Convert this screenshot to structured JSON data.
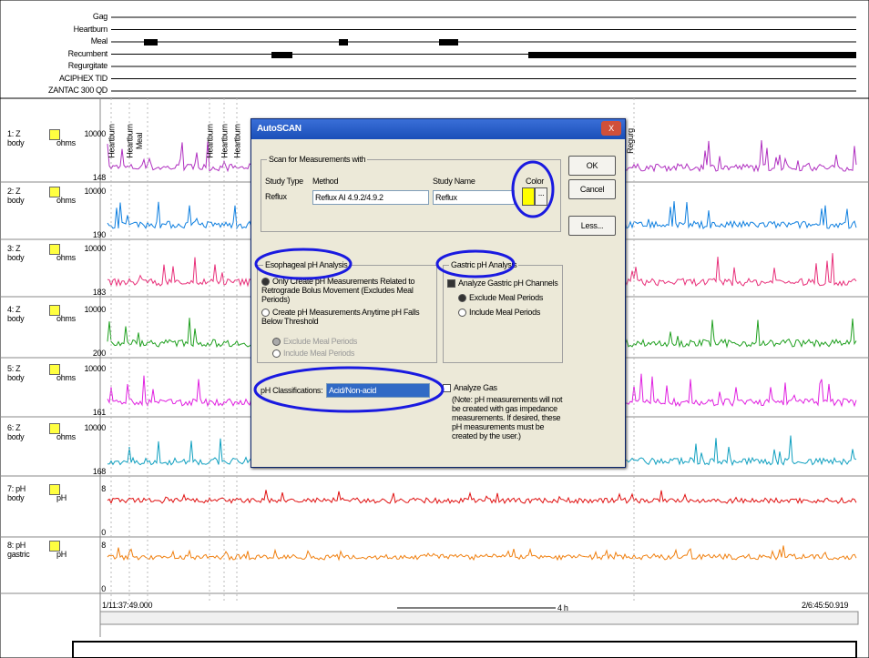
{
  "event_tracks": [
    "Gag",
    "Heartburn",
    "Meal",
    "Recumbent",
    "Regurgitate",
    "ACIPHEX TID",
    "ZANTAC 300 QD"
  ],
  "channels": [
    {
      "name": "1: Z",
      "site": "body",
      "unit": "ohms",
      "max": "10000",
      "min": "148"
    },
    {
      "name": "2: Z",
      "site": "body",
      "unit": "ohms",
      "max": "10000",
      "min": "190"
    },
    {
      "name": "3: Z",
      "site": "body",
      "unit": "ohms",
      "max": "10000",
      "min": "183"
    },
    {
      "name": "4: Z",
      "site": "body",
      "unit": "ohms",
      "max": "10000",
      "min": "200"
    },
    {
      "name": "5: Z",
      "site": "body",
      "unit": "ohms",
      "max": "10000",
      "min": "161"
    },
    {
      "name": "6: Z",
      "site": "body",
      "unit": "ohms",
      "max": "10000",
      "min": "168"
    },
    {
      "name": "7: pH",
      "site": "body",
      "unit": "pH",
      "max": "8",
      "min": "0"
    },
    {
      "name": "8: pH",
      "site": "gastric",
      "unit": "pH",
      "max": "8",
      "min": "0"
    }
  ],
  "markers": [
    "Heartburn",
    "Heartburn",
    "Meal",
    "Heartburn",
    "Heartburn",
    "Heartburn",
    "Regurg"
  ],
  "timeline": {
    "start": "1/11:37:49.000",
    "span": "4 h",
    "end": "2/6:45:50.919"
  },
  "dialog": {
    "title": "AutoSCAN",
    "close": "X",
    "scan": {
      "legend": "Scan for Measurements with",
      "study_type_label": "Study Type",
      "study_type": "Reflux",
      "method_label": "Method",
      "method": "Reflux AI 4.9.2/4.9.2",
      "study_name_label": "Study Name",
      "study_name": "Reflux",
      "color_label": "Color",
      "color_button": "..."
    },
    "buttons": [
      "OK",
      "Cancel",
      "Less..."
    ],
    "esophageal": {
      "legend": "Esophageal pH Analysis",
      "option_1": "Only Create pH Measurements Related to Retrograde Bolus Movement (Excludes Meal Periods)",
      "option_2": "Create pH Measurements Anytime pH Falls Below Threshold",
      "sub_1": "Exclude Meal Periods",
      "sub_2": "Include Meal Periods"
    },
    "gastric": {
      "legend": "Gastric pH Analysis",
      "check": "Analyze Gastric pH Channels",
      "sub_1": "Exclude Meal Periods",
      "sub_2": "Include Meal Periods"
    },
    "ph_classifications_label": "pH Classifications:",
    "ph_classifications": "Acid/Non-acid",
    "gas": {
      "check": "Analyze Gas",
      "note": "(Note:  pH measurements will not be created with gas impedance measurements. If desired, these pH measurements must be created by the user.)"
    }
  }
}
